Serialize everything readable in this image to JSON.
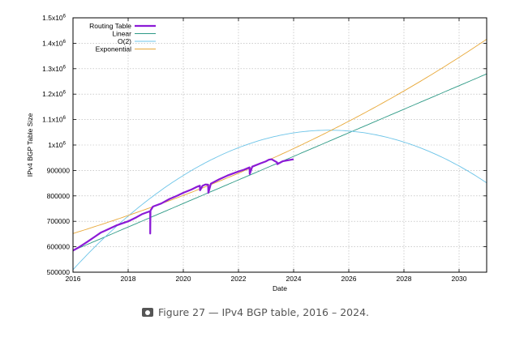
{
  "chart_data": {
    "type": "line",
    "title": "",
    "xlabel": "Date",
    "ylabel": "IPv4 BGP Table Size",
    "xlim": [
      2016,
      2031
    ],
    "ylim": [
      500000,
      1500000
    ],
    "x_ticks": [
      2016,
      2018,
      2020,
      2022,
      2024,
      2026,
      2028,
      2030
    ],
    "y_ticks": [
      {
        "value": 500000,
        "label": "500000"
      },
      {
        "value": 600000,
        "label": "600000"
      },
      {
        "value": 700000,
        "label": "700000"
      },
      {
        "value": 800000,
        "label": "800000"
      },
      {
        "value": 900000,
        "label": "900000"
      },
      {
        "value": 1000000,
        "label": "1x10",
        "exp": "6"
      },
      {
        "value": 1100000,
        "label": "1.1x10",
        "exp": "6"
      },
      {
        "value": 1200000,
        "label": "1.2x10",
        "exp": "6"
      },
      {
        "value": 1300000,
        "label": "1.3x10",
        "exp": "6"
      },
      {
        "value": 1400000,
        "label": "1.4x10",
        "exp": "6"
      },
      {
        "value": 1500000,
        "label": "1.5x10",
        "exp": "6"
      }
    ],
    "grid": true,
    "legend_position": "top-left",
    "series": [
      {
        "name": "Routing Table",
        "color": "#8b1ad6",
        "x": [
          2016.0,
          2016.2,
          2016.5,
          2016.8,
          2017.0,
          2017.3,
          2017.6,
          2018.0,
          2018.3,
          2018.5,
          2018.7,
          2018.8,
          2018.8,
          2018.81,
          2018.9,
          2019.2,
          2019.5,
          2019.8,
          2020.0,
          2020.3,
          2020.5,
          2020.6,
          2020.61,
          2020.7,
          2020.8,
          2020.9,
          2020.91,
          2021.0,
          2021.3,
          2021.6,
          2022.0,
          2022.2,
          2022.4,
          2022.41,
          2022.5,
          2022.8,
          2023.0,
          2023.1,
          2023.2,
          2023.4,
          2023.41,
          2023.6,
          2023.8,
          2024.0
        ],
        "values": [
          585000,
          597000,
          618000,
          640000,
          655000,
          670000,
          685000,
          700000,
          716000,
          728000,
          736000,
          740000,
          652000,
          742000,
          758000,
          770000,
          788000,
          802000,
          812000,
          825000,
          836000,
          840000,
          822000,
          840000,
          845000,
          844000,
          812000,
          848000,
          865000,
          880000,
          896000,
          903000,
          912000,
          886000,
          915000,
          928000,
          936000,
          942000,
          944000,
          932000,
          925000,
          936000,
          940000,
          944000
        ]
      },
      {
        "name": "Linear",
        "color": "#2e9a86",
        "fit": "linear"
      },
      {
        "name": "O(2)",
        "color": "#6cc4e8",
        "fit": "quadratic"
      },
      {
        "name": "Exponential",
        "color": "#e8a93a",
        "fit": "exponential"
      }
    ]
  },
  "caption": {
    "icon": "camera-icon",
    "text": "Figure 27 — IPv4 BGP table, 2016 – 2024."
  }
}
